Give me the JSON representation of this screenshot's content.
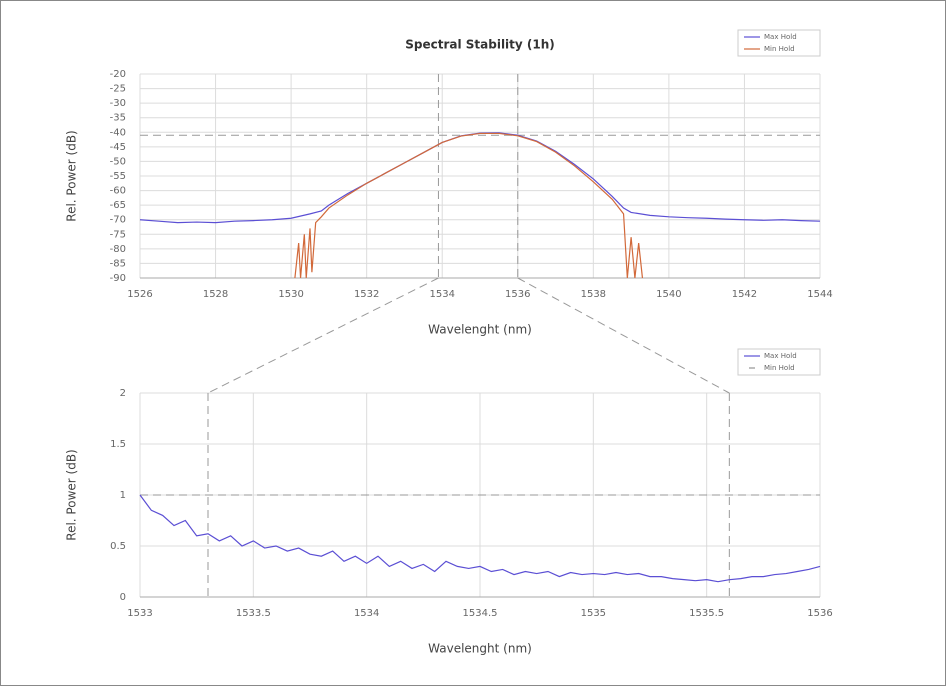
{
  "chart_data": [
    {
      "type": "line",
      "title": "Spectral Stability (1h)",
      "x_label": "Wavelenght (nm)",
      "y_label": "Rel. Power (dB)",
      "xlim": [
        1526,
        1544
      ],
      "xticks": [
        1526,
        1528,
        1530,
        1532,
        1534,
        1536,
        1538,
        1540,
        1542,
        1544
      ],
      "ylim": [
        -90,
        -20
      ],
      "yticks": [
        -90,
        -85,
        -80,
        -75,
        -70,
        -65,
        -60,
        -55,
        -50,
        -45,
        -40,
        -35,
        -30,
        -25,
        -20
      ],
      "grid": true,
      "legend": "upper right",
      "vlines": [
        1533.9,
        1536.0
      ],
      "hlines": [
        -41
      ],
      "series": [
        {
          "name": "Max Hold",
          "color": "#5b4fd4",
          "x": [
            1526,
            1526.5,
            1527,
            1527.5,
            1528,
            1528.5,
            1529,
            1529.5,
            1530,
            1530.5,
            1530.8,
            1531,
            1531.5,
            1532,
            1532.5,
            1533,
            1533.5,
            1534,
            1534.5,
            1535,
            1535.5,
            1536,
            1536.5,
            1537,
            1537.5,
            1538,
            1538.5,
            1538.8,
            1539,
            1539.5,
            1540,
            1540.5,
            1541,
            1541.5,
            1542,
            1542.5,
            1543,
            1543.5,
            1544
          ],
          "values": [
            -70,
            -70.5,
            -71,
            -70.8,
            -71,
            -70.5,
            -70.3,
            -70,
            -69.5,
            -68,
            -67,
            -65,
            -61,
            -57.5,
            -54,
            -50.5,
            -47,
            -43.5,
            -41.2,
            -40.3,
            -40.2,
            -41,
            -43,
            -46.5,
            -51,
            -56,
            -62,
            -66,
            -67.5,
            -68.5,
            -69,
            -69.3,
            -69.5,
            -69.8,
            -70,
            -70.2,
            -70,
            -70.3,
            -70.5
          ]
        },
        {
          "name": "Min Hold",
          "color": "#d2693a",
          "x": [
            1530.1,
            1530.2,
            1530.25,
            1530.35,
            1530.4,
            1530.5,
            1530.55,
            1530.65,
            1530.8,
            1531,
            1531.5,
            1532,
            1532.5,
            1533,
            1533.5,
            1534,
            1534.5,
            1535,
            1535.5,
            1536,
            1536.5,
            1537,
            1537.5,
            1538,
            1538.5,
            1538.8,
            1538.9,
            1539,
            1539.1,
            1539.2,
            1539.3
          ],
          "values": [
            -90,
            -78,
            -90,
            -75,
            -90,
            -73,
            -88,
            -71,
            -69,
            -66,
            -61.5,
            -57.5,
            -54,
            -50.5,
            -47,
            -43.5,
            -41.3,
            -40.4,
            -40.4,
            -41.2,
            -43.2,
            -46.8,
            -51.5,
            -57,
            -63,
            -68,
            -90,
            -76,
            -90,
            -78,
            -90
          ]
        }
      ]
    },
    {
      "type": "line",
      "x_label": "Wavelenght (nm)",
      "y_label": "Rel. Power (dB)",
      "xlim": [
        1533,
        1536
      ],
      "xticks": [
        1533,
        1533.5,
        1534,
        1534.5,
        1535,
        1535.5,
        1536
      ],
      "ylim": [
        0,
        2
      ],
      "yticks": [
        0,
        0.5,
        1,
        1.5,
        2
      ],
      "grid": true,
      "legend": "upper right",
      "vlines": [
        1533.3,
        1535.6
      ],
      "hlines": [
        1
      ],
      "series": [
        {
          "name": "Max Hold",
          "color": "#5b4fd4",
          "x": [
            1533,
            1533.05,
            1533.1,
            1533.15,
            1533.2,
            1533.25,
            1533.3,
            1533.35,
            1533.4,
            1533.45,
            1533.5,
            1533.55,
            1533.6,
            1533.65,
            1533.7,
            1533.75,
            1533.8,
            1533.85,
            1533.9,
            1533.95,
            1534,
            1534.05,
            1534.1,
            1534.15,
            1534.2,
            1534.25,
            1534.3,
            1534.35,
            1534.4,
            1534.45,
            1534.5,
            1534.55,
            1534.6,
            1534.65,
            1534.7,
            1534.75,
            1534.8,
            1534.85,
            1534.9,
            1534.95,
            1535,
            1535.05,
            1535.1,
            1535.15,
            1535.2,
            1535.25,
            1535.3,
            1535.35,
            1535.4,
            1535.45,
            1535.5,
            1535.55,
            1535.6,
            1535.65,
            1535.7,
            1535.75,
            1535.8,
            1535.85,
            1535.9,
            1535.95,
            1536
          ],
          "values": [
            1.0,
            0.85,
            0.8,
            0.7,
            0.75,
            0.6,
            0.62,
            0.55,
            0.6,
            0.5,
            0.55,
            0.48,
            0.5,
            0.45,
            0.48,
            0.42,
            0.4,
            0.45,
            0.35,
            0.4,
            0.33,
            0.4,
            0.3,
            0.35,
            0.28,
            0.32,
            0.25,
            0.35,
            0.3,
            0.28,
            0.3,
            0.25,
            0.27,
            0.22,
            0.25,
            0.23,
            0.25,
            0.2,
            0.24,
            0.22,
            0.23,
            0.22,
            0.24,
            0.22,
            0.23,
            0.2,
            0.2,
            0.18,
            0.17,
            0.16,
            0.17,
            0.15,
            0.17,
            0.18,
            0.2,
            0.2,
            0.22,
            0.23,
            0.25,
            0.27,
            0.3
          ]
        },
        {
          "name": "Min Hold",
          "color": "#999999"
        }
      ]
    }
  ]
}
